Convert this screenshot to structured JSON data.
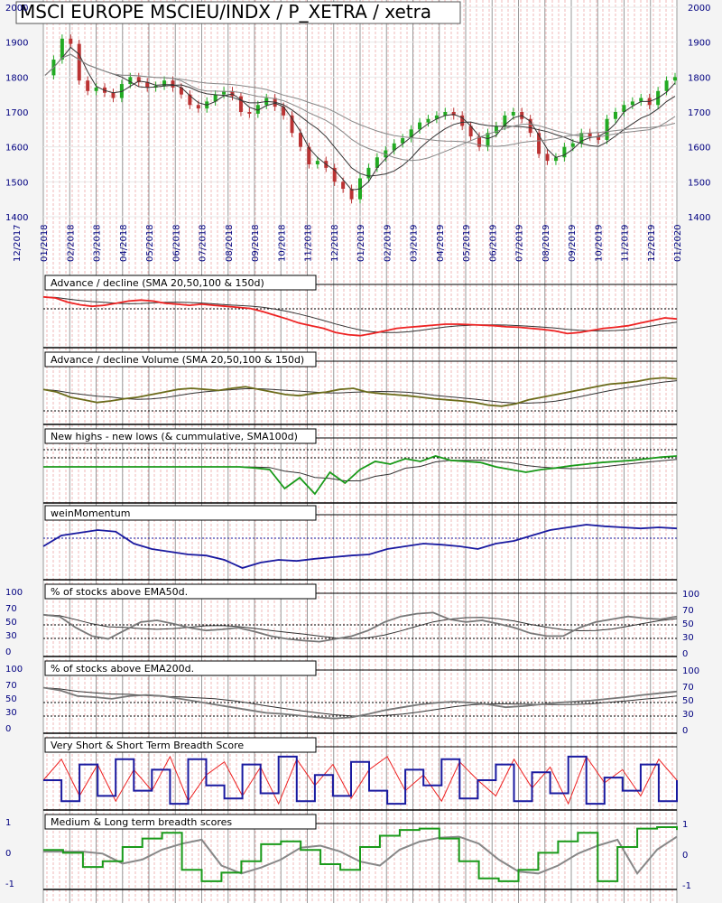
{
  "chart_data": {
    "type": "line",
    "title": "MSCI EUROPE MSCIEU/INDX / P_XETRA / xetra",
    "colors": {
      "up_candle": "#22aa22",
      "down_candle": "#bb3333",
      "sma": "#555555",
      "ad_line": "#ee2222",
      "ad_volume": "#6b6b1a",
      "highs_lows": "#1a9a1a",
      "wein": "#1a1aa0",
      "pct_line": "#777777",
      "vshort": "#ee2222",
      "short": "#1a1aa0",
      "medium": "#1a9a1a",
      "long": "#888888"
    },
    "x_tick_labels": [
      "12/2017",
      "01/2018",
      "02/2018",
      "03/2018",
      "04/2018",
      "05/2018",
      "06/2018",
      "07/2018",
      "08/2018",
      "09/2018",
      "10/2018",
      "11/2018",
      "12/2018",
      "01/2019",
      "02/2019",
      "03/2019",
      "04/2019",
      "05/2019",
      "06/2019",
      "07/2019",
      "08/2019",
      "09/2019",
      "10/2019",
      "11/2019",
      "12/2019",
      "01/2020"
    ],
    "price_panel": {
      "ylim": [
        1400,
        2000
      ],
      "left_ticks": [
        "2000",
        "1900",
        "1800",
        "1700",
        "1600",
        "1500",
        "1400"
      ],
      "right_ticks": [
        "2000",
        "1900",
        "1800",
        "1700",
        "1600",
        "1500",
        "1400"
      ],
      "close": [
        1805,
        1850,
        1910,
        1895,
        1790,
        1760,
        1770,
        1755,
        1740,
        1780,
        1800,
        1785,
        1770,
        1775,
        1790,
        1770,
        1750,
        1720,
        1710,
        1730,
        1750,
        1760,
        1745,
        1700,
        1695,
        1720,
        1740,
        1715,
        1690,
        1640,
        1600,
        1550,
        1560,
        1540,
        1500,
        1480,
        1450,
        1510,
        1540,
        1570,
        1590,
        1610,
        1625,
        1650,
        1670,
        1680,
        1690,
        1700,
        1690,
        1660,
        1630,
        1600,
        1640,
        1660,
        1690,
        1700,
        1680,
        1640,
        1580,
        1560,
        1570,
        1600,
        1610,
        1640,
        1630,
        1620,
        1680,
        1700,
        1720,
        1730,
        1740,
        1720,
        1760,
        1790,
        1800
      ]
    },
    "panels": [
      {
        "title": "Advance / decline (SMA 20,50,100 & 150d)",
        "values": [
          0.9,
          0.88,
          0.8,
          0.75,
          0.72,
          0.74,
          0.78,
          0.82,
          0.84,
          0.82,
          0.78,
          0.76,
          0.74,
          0.76,
          0.74,
          0.72,
          0.7,
          0.68,
          0.62,
          0.55,
          0.48,
          0.4,
          0.35,
          0.3,
          0.22,
          0.18,
          0.16,
          0.2,
          0.25,
          0.3,
          0.32,
          0.34,
          0.36,
          0.38,
          0.38,
          0.37,
          0.36,
          0.35,
          0.33,
          0.32,
          0.3,
          0.28,
          0.25,
          0.2,
          0.22,
          0.26,
          0.3,
          0.32,
          0.35,
          0.4,
          0.45,
          0.5,
          0.48
        ]
      },
      {
        "title": "Advance / decline Volume (SMA 20,50,100 & 150d)",
        "values": [
          0.6,
          0.55,
          0.45,
          0.4,
          0.35,
          0.38,
          0.42,
          0.45,
          0.5,
          0.55,
          0.6,
          0.62,
          0.6,
          0.58,
          0.62,
          0.65,
          0.6,
          0.55,
          0.5,
          0.48,
          0.52,
          0.55,
          0.6,
          0.62,
          0.55,
          0.52,
          0.5,
          0.48,
          0.45,
          0.42,
          0.4,
          0.38,
          0.35,
          0.3,
          0.28,
          0.32,
          0.4,
          0.45,
          0.5,
          0.55,
          0.6,
          0.65,
          0.7,
          0.72,
          0.75,
          0.8,
          0.82,
          0.8
        ]
      },
      {
        "title": "New highs - new lows (& cummulative, SMA100d)",
        "values": [
          0.6,
          0.6,
          0.6,
          0.6,
          0.6,
          0.6,
          0.6,
          0.6,
          0.6,
          0.6,
          0.6,
          0.6,
          0.6,
          0.6,
          0.58,
          0.55,
          0.2,
          0.4,
          0.1,
          0.5,
          0.3,
          0.55,
          0.7,
          0.65,
          0.75,
          0.7,
          0.8,
          0.72,
          0.7,
          0.68,
          0.6,
          0.55,
          0.5,
          0.55,
          0.58,
          0.62,
          0.65,
          0.68,
          0.7,
          0.72,
          0.75,
          0.78,
          0.8
        ]
      },
      {
        "title": "weinMomentum",
        "values": [
          0.55,
          0.75,
          0.8,
          0.85,
          0.82,
          0.6,
          0.5,
          0.45,
          0.4,
          0.38,
          0.3,
          0.15,
          0.25,
          0.3,
          0.28,
          0.32,
          0.35,
          0.38,
          0.4,
          0.5,
          0.55,
          0.6,
          0.58,
          0.55,
          0.5,
          0.6,
          0.65,
          0.75,
          0.85,
          0.9,
          0.95,
          0.92,
          0.9,
          0.88,
          0.9,
          0.88
        ]
      },
      {
        "title": "% of stocks above EMA50d.",
        "left_ticks": [
          "100",
          "70",
          "50",
          "30",
          "0"
        ],
        "right_ticks": [
          "100",
          "70",
          "50",
          "30",
          "0"
        ],
        "values": [
          68,
          65,
          45,
          30,
          25,
          40,
          55,
          58,
          52,
          45,
          40,
          42,
          45,
          38,
          30,
          25,
          22,
          20,
          25,
          30,
          40,
          55,
          65,
          70,
          72,
          60,
          55,
          58,
          52,
          45,
          35,
          30,
          30,
          45,
          55,
          60,
          65,
          62,
          60,
          65
        ]
      },
      {
        "title": "% of stocks above EMA200d.",
        "left_ticks": [
          "100",
          "70",
          "50",
          "30",
          "0"
        ],
        "right_ticks": [
          "100",
          "70",
          "50",
          "30",
          "0"
        ],
        "values": [
          75,
          70,
          60,
          58,
          55,
          60,
          62,
          60,
          55,
          50,
          45,
          40,
          35,
          30,
          28,
          25,
          22,
          20,
          22,
          28,
          35,
          40,
          45,
          48,
          50,
          48,
          45,
          40,
          42,
          45,
          48,
          50,
          52,
          55,
          58,
          62,
          65,
          68
        ]
      },
      {
        "title": "Very Short & Short Term Breadth Score",
        "values": [
          0.5,
          0.9,
          0.2,
          0.8,
          0.1,
          0.7,
          0.3,
          0.95,
          0.1,
          0.6,
          0.85,
          0.2,
          0.75,
          0.05,
          0.9,
          0.4,
          0.8,
          0.15,
          0.7,
          0.95,
          0.3,
          0.6,
          0.1,
          0.85,
          0.5,
          0.2,
          0.9,
          0.35,
          0.75,
          0.05,
          0.95,
          0.45,
          0.7,
          0.2,
          0.9,
          0.5
        ]
      },
      {
        "title": "Medium & Long term breadth scores",
        "left_ticks": [
          "1",
          "0",
          "-1"
        ],
        "right_ticks": [
          "1",
          "0",
          "-1"
        ],
        "values": [
          0.2,
          0.1,
          -0.4,
          -0.2,
          0.3,
          0.6,
          0.8,
          -0.5,
          -0.9,
          -0.6,
          -0.2,
          0.4,
          0.5,
          0.2,
          -0.3,
          -0.5,
          0.3,
          0.7,
          0.9,
          0.95,
          0.6,
          -0.2,
          -0.8,
          -0.9,
          -0.5,
          0.1,
          0.5,
          0.8,
          -0.9,
          0.3,
          0.95,
          1.0,
          0.9
        ]
      }
    ]
  }
}
